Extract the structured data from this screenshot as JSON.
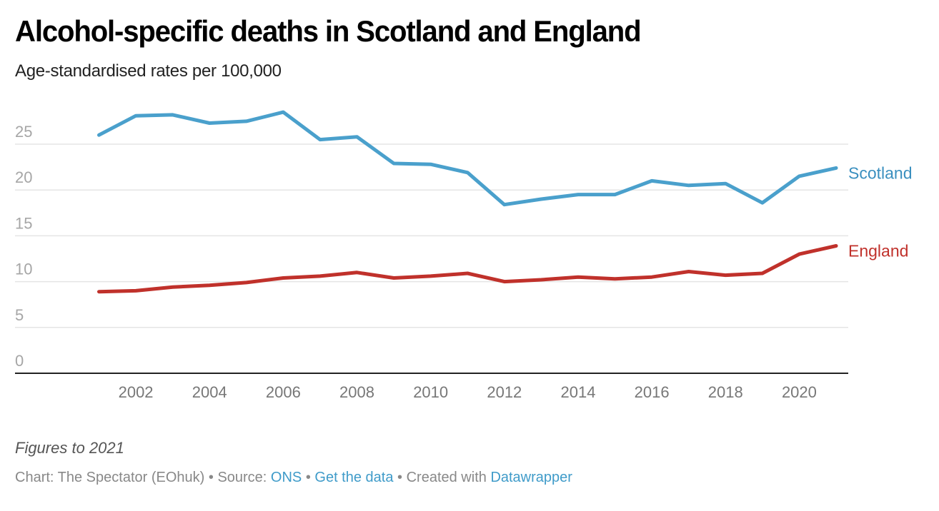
{
  "header": {
    "title": "Alcohol-specific deaths in Scotland and England",
    "subtitle": "Age-standardised rates per 100,000"
  },
  "chart_data": {
    "type": "line",
    "title": "Alcohol-specific deaths in Scotland and England",
    "subtitle": "Age-standardised rates per 100,000",
    "xlabel": "",
    "ylabel": "",
    "x": [
      2001,
      2002,
      2003,
      2004,
      2005,
      2006,
      2007,
      2008,
      2009,
      2010,
      2011,
      2012,
      2013,
      2014,
      2015,
      2016,
      2017,
      2018,
      2019,
      2020,
      2021
    ],
    "xlim": [
      2001,
      2021
    ],
    "xticks": [
      "2002",
      "2004",
      "2006",
      "2008",
      "2010",
      "2012",
      "2014",
      "2016",
      "2018",
      "2020"
    ],
    "xtick_values": [
      2002,
      2004,
      2006,
      2008,
      2010,
      2012,
      2014,
      2016,
      2018,
      2020
    ],
    "ylim": [
      0,
      25
    ],
    "yticks": [
      "0",
      "5",
      "10",
      "15",
      "20",
      "25"
    ],
    "ytick_values": [
      0,
      5,
      10,
      15,
      20,
      25
    ],
    "grid": true,
    "legend": "direct labels at line ends (right)",
    "series": [
      {
        "name": "Scotland",
        "color": "#4aa0cc",
        "label_color": "#3a8fbf",
        "values": [
          26.0,
          28.1,
          28.2,
          27.3,
          27.5,
          28.5,
          25.5,
          25.8,
          22.9,
          22.8,
          21.9,
          18.4,
          19.0,
          19.5,
          19.5,
          21.0,
          20.5,
          20.7,
          18.6,
          21.5,
          22.4
        ]
      },
      {
        "name": "England",
        "color": "#c0312b",
        "label_color": "#c0312b",
        "values": [
          8.9,
          9.0,
          9.4,
          9.6,
          9.9,
          10.4,
          10.6,
          11.0,
          10.4,
          10.6,
          10.9,
          10.0,
          10.2,
          10.5,
          10.3,
          10.5,
          11.1,
          10.7,
          10.9,
          13.0,
          13.9
        ]
      }
    ]
  },
  "notes": "Figures to 2021",
  "footer": {
    "chart_prefix": "Chart: The Spectator (EOhuk)",
    "separator": " • ",
    "source_prefix": "Source: ",
    "source_link": "ONS",
    "get_data": "Get the data",
    "created_prefix": "Created with ",
    "created_link": "Datawrapper"
  },
  "colors": {
    "link": "#3f9bc9",
    "gridline": "#e5e5e5",
    "baseline": "#222222"
  }
}
